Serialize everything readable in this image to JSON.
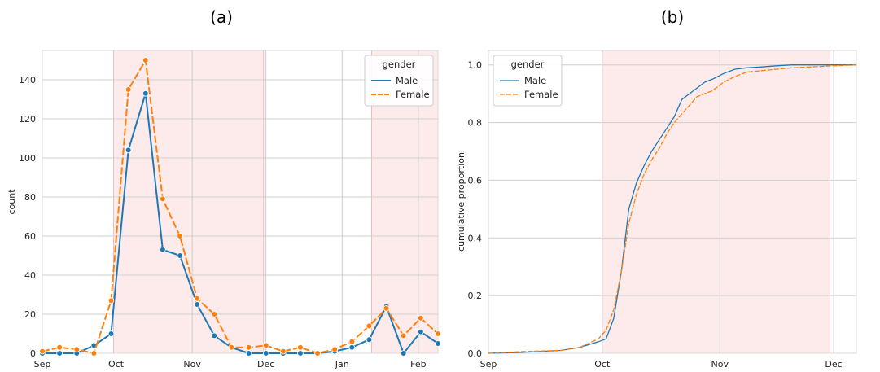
{
  "colors": {
    "male": "#1f77b4",
    "female": "#ff7f0e",
    "shade": "#fde8e8",
    "grid": "#cfcfcf"
  },
  "chart_data": [
    {
      "type": "line",
      "title": "(a)",
      "xlabel": "",
      "ylabel": "count",
      "xlim": [
        "2020-09-01",
        "2021-02-09"
      ],
      "ylim": [
        0,
        155
      ],
      "grid": true,
      "xticks": [
        {
          "label": "Sep",
          "date": "2020-09-01"
        },
        {
          "label": "Oct",
          "date": "2020-10-01"
        },
        {
          "label": "Nov",
          "date": "2020-11-01"
        },
        {
          "label": "Dec",
          "date": "2020-12-01"
        },
        {
          "label": "Jan",
          "date": "2021-01-01"
        },
        {
          "label": "Feb",
          "date": "2021-02-01"
        }
      ],
      "yticks": [
        0,
        20,
        40,
        60,
        80,
        100,
        120,
        140
      ],
      "shaded_ranges": [
        [
          "2020-09-30",
          "2020-11-30"
        ],
        [
          "2021-01-13",
          "2021-02-09"
        ]
      ],
      "legend": {
        "title": "gender",
        "position": "top-right"
      },
      "x": [
        "2020-09-01",
        "2020-09-08",
        "2020-09-15",
        "2020-09-22",
        "2020-09-29",
        "2020-10-06",
        "2020-10-13",
        "2020-10-20",
        "2020-10-27",
        "2020-11-03",
        "2020-11-10",
        "2020-11-17",
        "2020-11-24",
        "2020-12-01",
        "2020-12-08",
        "2020-12-15",
        "2020-12-22",
        "2020-12-29",
        "2021-01-05",
        "2021-01-12",
        "2021-01-19",
        "2021-01-26",
        "2021-02-02",
        "2021-02-09"
      ],
      "series": [
        {
          "name": "Male",
          "style": "solid",
          "values": [
            0,
            0,
            0,
            4,
            10,
            104,
            133,
            53,
            50,
            25,
            9,
            3,
            0,
            0,
            0,
            0,
            0,
            1,
            3,
            7,
            24,
            0,
            11,
            5
          ]
        },
        {
          "name": "Female",
          "style": "dashed",
          "values": [
            1,
            3,
            2,
            0,
            27,
            135,
            150,
            79,
            60,
            28,
            20,
            3,
            3,
            4,
            1,
            3,
            0,
            2,
            6,
            14,
            23,
            9,
            18,
            10
          ]
        }
      ]
    },
    {
      "type": "line",
      "title": "(b)",
      "xlabel": "",
      "ylabel": "cumulative proportion",
      "xlim": [
        "2020-09-01",
        "2020-12-07"
      ],
      "ylim": [
        0,
        1.05
      ],
      "grid": true,
      "xticks": [
        {
          "label": "Sep",
          "date": "2020-09-01"
        },
        {
          "label": "Oct",
          "date": "2020-10-01"
        },
        {
          "label": "Nov",
          "date": "2020-11-01"
        },
        {
          "label": "Dec",
          "date": "2020-12-01"
        }
      ],
      "yticks": [
        "0.0",
        "0.2",
        "0.4",
        "0.6",
        "0.8",
        "1.0"
      ],
      "shaded_ranges": [
        [
          "2020-10-01",
          "2020-11-30"
        ]
      ],
      "legend": {
        "title": "gender",
        "position": "top-left"
      },
      "series": [
        {
          "name": "Male",
          "style": "solid",
          "x": [
            "2020-09-01",
            "2020-09-10",
            "2020-09-20",
            "2020-09-25",
            "2020-09-30",
            "2020-10-02",
            "2020-10-04",
            "2020-10-06",
            "2020-10-08",
            "2020-10-10",
            "2020-10-12",
            "2020-10-14",
            "2020-10-16",
            "2020-10-18",
            "2020-10-20",
            "2020-10-22",
            "2020-10-24",
            "2020-10-26",
            "2020-10-28",
            "2020-10-30",
            "2020-11-02",
            "2020-11-05",
            "2020-11-08",
            "2020-11-12",
            "2020-11-16",
            "2020-11-20",
            "2020-11-25",
            "2020-12-01",
            "2020-12-07"
          ],
          "values": [
            0.0,
            0.003,
            0.01,
            0.02,
            0.04,
            0.05,
            0.12,
            0.28,
            0.5,
            0.59,
            0.65,
            0.7,
            0.74,
            0.78,
            0.82,
            0.88,
            0.9,
            0.92,
            0.94,
            0.95,
            0.97,
            0.985,
            0.99,
            0.993,
            0.997,
            1.0,
            1.0,
            1.0,
            1.0
          ]
        },
        {
          "name": "Female",
          "style": "dashed",
          "x": [
            "2020-09-01",
            "2020-09-10",
            "2020-09-20",
            "2020-09-25",
            "2020-09-30",
            "2020-10-02",
            "2020-10-04",
            "2020-10-06",
            "2020-10-08",
            "2020-10-10",
            "2020-10-12",
            "2020-10-14",
            "2020-10-16",
            "2020-10-18",
            "2020-10-20",
            "2020-10-22",
            "2020-10-24",
            "2020-10-26",
            "2020-10-28",
            "2020-10-30",
            "2020-11-02",
            "2020-11-05",
            "2020-11-08",
            "2020-11-12",
            "2020-11-16",
            "2020-11-20",
            "2020-11-25",
            "2020-12-01",
            "2020-12-07"
          ],
          "values": [
            0.0,
            0.006,
            0.01,
            0.02,
            0.05,
            0.08,
            0.15,
            0.28,
            0.45,
            0.55,
            0.62,
            0.67,
            0.71,
            0.76,
            0.8,
            0.83,
            0.86,
            0.89,
            0.9,
            0.91,
            0.94,
            0.96,
            0.975,
            0.98,
            0.985,
            0.99,
            0.993,
            0.997,
            1.0
          ]
        }
      ]
    }
  ]
}
